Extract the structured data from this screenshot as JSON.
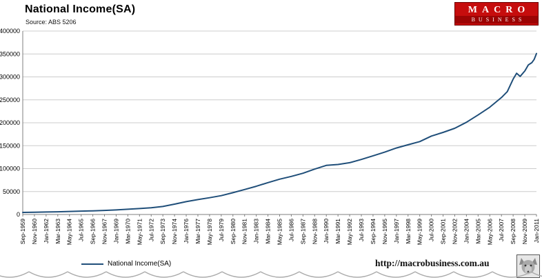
{
  "header": {
    "title": "National Income(SA)",
    "source": "Source: ABS 5206"
  },
  "logo": {
    "line1": "MACRO",
    "line2": "BUSINESS",
    "bg_color": "#c60d0d"
  },
  "legend": {
    "label": "National Income(SA)"
  },
  "footer": {
    "url": "http://macrobusiness.com.au"
  },
  "colors": {
    "line": "#1F4E79",
    "grid": "#cccccc",
    "axis": "#7f7f7f"
  },
  "chart_data": {
    "type": "line",
    "title": "National Income(SA)",
    "subtitle": "Source: ABS 5206",
    "xlabel": "",
    "ylabel": "",
    "ylim": [
      0,
      400000
    ],
    "y_ticks": [
      0,
      50000,
      100000,
      150000,
      200000,
      250000,
      300000,
      350000,
      400000
    ],
    "grid": "horizontal",
    "legend_position": "bottom-left",
    "x_labels": [
      "Sep-1959",
      "Nov-1960",
      "Jan-1962",
      "Mar-1963",
      "May-1964",
      "Jul-1965",
      "Sep-1966",
      "Nov-1967",
      "Jan-1969",
      "Mar-1970",
      "May-1971",
      "Jul-1972",
      "Sep-1973",
      "Nov-1974",
      "Jan-1976",
      "Mar-1977",
      "May-1978",
      "Jul-1979",
      "Sep-1980",
      "Nov-1981",
      "Jan-1983",
      "Mar-1984",
      "May-1985",
      "Jul-1986",
      "Sep-1987",
      "Nov-1988",
      "Jan-1990",
      "Mar-1991",
      "May-1992",
      "Jul-1993",
      "Sep-1994",
      "Nov-1995",
      "Jan-1997",
      "Mar-1998",
      "May-1999",
      "Jul-2000",
      "Sep-2001",
      "Nov-2002",
      "Jan-2004",
      "Mar-2005",
      "May-2006",
      "Jul-2007",
      "Sep-2008",
      "Nov-2009",
      "Jan-2011"
    ],
    "series": [
      {
        "name": "National Income(SA)",
        "color": "#1F4E79",
        "points": [
          [
            0,
            4500
          ],
          [
            1,
            5000
          ],
          [
            2,
            5400
          ],
          [
            3,
            5900
          ],
          [
            4,
            6600
          ],
          [
            5,
            7300
          ],
          [
            6,
            8000
          ],
          [
            7,
            8800
          ],
          [
            8,
            10000
          ],
          [
            9,
            11500
          ],
          [
            10,
            13000
          ],
          [
            11,
            14800
          ],
          [
            12,
            17500
          ],
          [
            13,
            22500
          ],
          [
            14,
            28000
          ],
          [
            15,
            32500
          ],
          [
            16,
            36500
          ],
          [
            17,
            41000
          ],
          [
            18,
            47500
          ],
          [
            19,
            54500
          ],
          [
            20,
            61500
          ],
          [
            21,
            69500
          ],
          [
            22,
            77000
          ],
          [
            23,
            83000
          ],
          [
            24,
            90000
          ],
          [
            25,
            99000
          ],
          [
            26,
            107000
          ],
          [
            27,
            109000
          ],
          [
            28,
            113000
          ],
          [
            29,
            120000
          ],
          [
            30,
            128000
          ],
          [
            31,
            136000
          ],
          [
            32,
            145000
          ],
          [
            33,
            152000
          ],
          [
            34,
            159000
          ],
          [
            35,
            171000
          ],
          [
            36,
            179000
          ],
          [
            37,
            188000
          ],
          [
            38,
            201000
          ],
          [
            39,
            217000
          ],
          [
            40,
            234000
          ],
          [
            41,
            255000
          ],
          [
            41.5,
            268000
          ],
          [
            42,
            295000
          ],
          [
            42.3,
            308000
          ],
          [
            42.6,
            301000
          ],
          [
            43,
            313000
          ],
          [
            43.3,
            326000
          ],
          [
            43.6,
            331000
          ],
          [
            43.8,
            338000
          ],
          [
            44,
            351000
          ]
        ]
      }
    ]
  }
}
